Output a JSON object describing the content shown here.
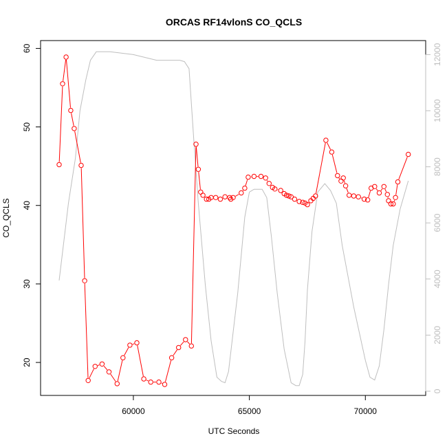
{
  "chart_data": {
    "type": "line",
    "title": "ORCAS RF14vlonS CO_QCLS",
    "xlabel": "UTC Seconds",
    "ylabel": "CO_QCLS",
    "xlim": [
      56000,
      72600
    ],
    "ylim": [
      15.8,
      61.0
    ],
    "y2lim": [
      -150,
      12500
    ],
    "x_ticks": [
      60000,
      65000,
      70000
    ],
    "y_ticks": [
      20,
      30,
      40,
      50,
      60
    ],
    "y2_ticks": [
      0,
      2000,
      4000,
      6000,
      8000,
      10000,
      12000
    ],
    "colors": {
      "primary": "#ff0000",
      "secondary": "#bebebe"
    },
    "grid": false,
    "series": [
      {
        "axis": "left",
        "style": "points-and-lines",
        "color": "#ff0000",
        "x": [
          56800,
          56950,
          57100,
          57300,
          57450,
          57750,
          57900,
          58050,
          58350,
          58650,
          58950,
          59300,
          59550,
          59850,
          60150,
          60450,
          60750,
          61100,
          61350,
          61650,
          61950,
          62250,
          62500,
          62700,
          62800,
          62900,
          63000,
          63150,
          63250,
          63350,
          63550,
          63750,
          63950,
          64150,
          64200,
          64300,
          64650,
          64800,
          64950,
          65200,
          65500,
          65700,
          65850,
          66000,
          66100,
          66350,
          66500,
          66600,
          66700,
          66800,
          66950,
          67150,
          67300,
          67400,
          67500,
          67650,
          67750,
          67850,
          68300,
          68550,
          68800,
          68950,
          69050,
          69150,
          69300,
          69500,
          69700,
          69950,
          70100,
          70250,
          70400,
          70600,
          70800,
          70950,
          71000,
          71100,
          71200,
          71300,
          71400,
          71850
        ],
        "y": [
          45.2,
          55.5,
          58.9,
          52.1,
          49.8,
          45.1,
          30.4,
          17.7,
          19.5,
          19.8,
          18.8,
          17.3,
          20.6,
          22.2,
          22.5,
          17.9,
          17.5,
          17.5,
          17.2,
          20.6,
          21.9,
          22.9,
          22.1,
          47.8,
          44.6,
          41.7,
          41.3,
          40.8,
          40.8,
          41.0,
          41.0,
          40.8,
          41.1,
          41.0,
          40.8,
          41.0,
          41.6,
          42.2,
          43.6,
          43.7,
          43.7,
          43.5,
          42.8,
          42.3,
          42.1,
          41.9,
          41.5,
          41.3,
          41.2,
          41.1,
          40.8,
          40.5,
          40.4,
          40.3,
          40.1,
          40.6,
          40.9,
          41.2,
          48.3,
          46.8,
          43.8,
          43.1,
          43.5,
          42.5,
          41.3,
          41.2,
          41.1,
          40.8,
          40.7,
          42.2,
          42.4,
          41.6,
          42.4,
          41.4,
          40.6,
          40.2,
          40.2,
          41.0,
          43.0,
          46.5
        ]
      },
      {
        "axis": "right",
        "style": "line",
        "color": "#bebebe",
        "x": [
          56800,
          57200,
          57500,
          57700,
          57950,
          58150,
          58400,
          59000,
          60000,
          61000,
          62000,
          62200,
          62400,
          62600,
          62800,
          63100,
          63350,
          63600,
          63800,
          63950,
          64100,
          64500,
          64800,
          65000,
          65200,
          65550,
          65750,
          65950,
          66200,
          66500,
          66800,
          67000,
          67150,
          67300,
          67400,
          67500,
          67700,
          67950,
          68250,
          68500,
          68750,
          69000,
          69500,
          70000,
          70200,
          70400,
          70600,
          70800,
          71000,
          71200,
          71500,
          71850
        ],
        "y": [
          3950,
          6700,
          8300,
          10000,
          11100,
          11800,
          12100,
          12100,
          12000,
          11800,
          11800,
          11750,
          11500,
          9000,
          6700,
          3800,
          1800,
          500,
          350,
          300,
          700,
          3500,
          6200,
          7100,
          7200,
          7200,
          6900,
          5500,
          3500,
          1500,
          300,
          200,
          200,
          600,
          1800,
          3600,
          5700,
          7100,
          7400,
          7150,
          6700,
          5200,
          3000,
          1100,
          500,
          400,
          900,
          2200,
          3800,
          5200,
          6500,
          7500
        ]
      }
    ]
  }
}
